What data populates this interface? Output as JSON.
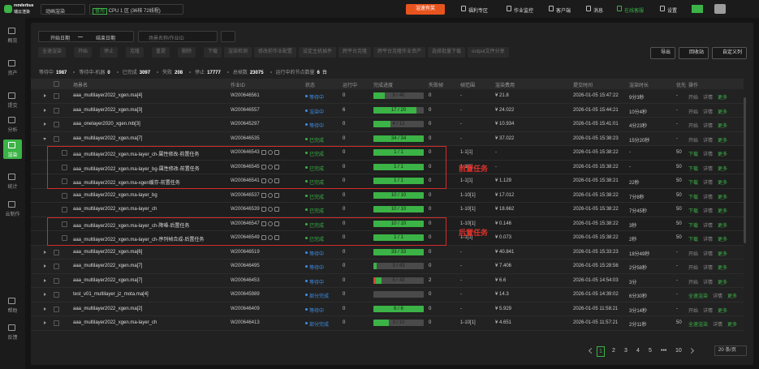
{
  "topbar": {
    "logo": "renderbus",
    "logo_sub": "瑞云渲染",
    "product": "动画渲染",
    "zone_tag": "暂用",
    "zone": "CPU 1 区 (36核 72线程)",
    "promo": "渲速有奖",
    "links": [
      "福利专区",
      "作业监控",
      "客户端",
      "消息",
      "在线客服",
      "设置"
    ]
  },
  "sidebar": {
    "items": [
      "概览",
      "资产",
      "提交",
      "分析",
      "渲染",
      "统计",
      "云制作"
    ],
    "active": 4,
    "bottom": [
      "帮助",
      "反馈"
    ]
  },
  "filters": {
    "start_date": "开始日期",
    "end_date": "结束日期",
    "search": "场景名称/作业ID"
  },
  "toolbar": {
    "buttons": [
      "全速渲染",
      "开始",
      "停止",
      "克隆",
      "重提",
      "删除",
      "下载",
      "渲染检测",
      "修改前作业配置",
      "设定主机插件",
      "跨平台克隆",
      "跨平台克隆作业资产",
      "选择批量下载",
      "output文件分享"
    ],
    "right": [
      "导出",
      "回收站",
      "自定义列"
    ]
  },
  "stats": [
    {
      "label": "等待中",
      "value": "1987"
    },
    {
      "label": "等待中-机器",
      "value": "0"
    },
    {
      "label": "已完成",
      "value": "3097"
    },
    {
      "label": "失败",
      "value": "208"
    },
    {
      "label": "停止",
      "value": "17777"
    },
    {
      "label": "总帧数",
      "value": "23075"
    },
    {
      "label": "运行中的节点数量",
      "value": "6",
      "unit": "台"
    }
  ],
  "table": {
    "columns": [
      "场景名",
      "作业ID",
      "状态",
      "运行中",
      "完成进度",
      "失败帧",
      "帧范围",
      "渲染费用",
      "提交时间",
      "渲染时长",
      "优先",
      "操作"
    ],
    "rows": [
      {
        "name": "aaa_multilayer2022_xgen.ma[4]",
        "id": "W200646561",
        "status": {
          "text": "等待中",
          "color": "#3d8fe8"
        },
        "running": 0,
        "progress": {
          "done": 9,
          "total": 40,
          "label": "9 / 40"
        },
        "failed": 0,
        "frames": "-",
        "cost": "¥ 21.8",
        "submitted": "2026-01-05 15:47:22",
        "duration": "9分3秒",
        "priority": "-",
        "actions": [
          {
            "text": "开始",
            "color": "#8a8a8a"
          },
          {
            "text": "详情",
            "color": "#8a8a8a"
          },
          {
            "text": "更多",
            "color": "#3bb346"
          }
        ]
      },
      {
        "name": "aaa_multilayer2022_xgen.ma[3]",
        "id": "W200646557",
        "status": {
          "text": "渲染中",
          "color": "#3d8fe8"
        },
        "running": 6,
        "progress": {
          "done": 17,
          "total": 20,
          "label": "17 / 20"
        },
        "failed": 0,
        "frames": "-",
        "cost": "¥ 24.022",
        "submitted": "2026-01-05 15:44:21",
        "duration": "10分4秒",
        "priority": "-",
        "actions": [
          {
            "text": "开始",
            "color": "#8a8a8a"
          },
          {
            "text": "详情",
            "color": "#8a8a8a"
          },
          {
            "text": "更多",
            "color": "#3bb346"
          }
        ]
      },
      {
        "name": "aaa_onelayer2020_xgen.mb[3]",
        "id": "W200645297",
        "status": {
          "text": "等待中",
          "color": "#3d8fe8"
        },
        "running": 0,
        "progress": {
          "done": 4,
          "total": 12,
          "label": "4 / 12"
        },
        "failed": 0,
        "frames": "-",
        "cost": "¥ 10.934",
        "submitted": "2026-01-05 15:41:01",
        "duration": "4分23秒",
        "priority": "-",
        "actions": [
          {
            "text": "开始",
            "color": "#8a8a8a"
          },
          {
            "text": "详情",
            "color": "#8a8a8a"
          },
          {
            "text": "更多",
            "color": "#3bb346"
          }
        ]
      },
      {
        "name": "aaa_multilayer2022_xgen.ma[7]",
        "id": "W200646535",
        "status": {
          "text": "已完成",
          "color": "#3bb346"
        },
        "running": 0,
        "progress": {
          "done": 34,
          "total": 34,
          "label": "34 / 34"
        },
        "failed": 0,
        "frames": "-",
        "cost": "¥ 37.022",
        "submitted": "2026-01-05 15:38:23",
        "duration": "15分20秒",
        "priority": "-",
        "actions": [
          {
            "text": "开始",
            "color": "#8a8a8a"
          },
          {
            "text": "详情",
            "color": "#8a8a8a"
          },
          {
            "text": "更多",
            "color": "#3bb346"
          }
        ],
        "children": [
          {
            "name": "aaa_multilayer2022_xgen.ma-layer_ch-属性修改-前置任务",
            "id": "W200646543",
            "status": {
              "text": "已完成",
              "color": "#3bb346"
            },
            "running": 0,
            "progress": {
              "done": 1,
              "total": 1,
              "label": "1 / 1"
            },
            "failed": 0,
            "frames": "1-1[1]",
            "cost": "-",
            "submitted": "2026-01-05 15:38:22",
            "duration": "-",
            "priority": "50",
            "actions": [
              {
                "text": "下载",
                "color": "#3bb346"
              },
              {
                "text": "详情",
                "color": "#8a8a8a"
              },
              {
                "text": "更多",
                "color": "#3bb346"
              }
            ]
          },
          {
            "name": "aaa_multilayer2022_xgen.ma-layer_bg-属性修改-前置任务",
            "id": "W200646545",
            "status": {
              "text": "已完成",
              "color": "#3bb346"
            },
            "running": 0,
            "progress": {
              "done": 1,
              "total": 1,
              "label": "1 / 1"
            },
            "failed": 0,
            "frames": "1-1[1]",
            "cost": "-",
            "submitted": "2026-01-05 15:38:22",
            "duration": "-",
            "priority": "50",
            "actions": [
              {
                "text": "下载",
                "color": "#3bb346"
              },
              {
                "text": "详情",
                "color": "#8a8a8a"
              },
              {
                "text": "更多",
                "color": "#3bb346"
              }
            ]
          },
          {
            "name": "aaa_multilayer2022_xgen.ma-xgen缓存-前置任务",
            "id": "W200646541",
            "status": {
              "text": "已完成",
              "color": "#3bb346"
            },
            "running": 0,
            "progress": {
              "done": 1,
              "total": 1,
              "label": "1 / 1"
            },
            "failed": 0,
            "frames": "1-1[1]",
            "cost": "¥ 1.129",
            "submitted": "2026-01-05 15:38:21",
            "duration": "22秒",
            "priority": "50",
            "actions": [
              {
                "text": "下载",
                "color": "#3bb346"
              },
              {
                "text": "详情",
                "color": "#8a8a8a"
              },
              {
                "text": "更多",
                "color": "#3bb346"
              }
            ]
          },
          {
            "name": "aaa_multilayer2022_xgen.ma-layer_bg",
            "id": "W200646537",
            "status": {
              "text": "已完成",
              "color": "#3bb346"
            },
            "running": 0,
            "progress": {
              "done": 10,
              "total": 10,
              "label": "10 / 10"
            },
            "failed": 0,
            "frames": "1-10[1]",
            "cost": "¥ 17.012",
            "submitted": "2026-01-05 15:38:22",
            "duration": "7分8秒",
            "priority": "50",
            "actions": [
              {
                "text": "下载",
                "color": "#3bb346"
              },
              {
                "text": "详情",
                "color": "#8a8a8a"
              },
              {
                "text": "更多",
                "color": "#3bb346"
              }
            ]
          },
          {
            "name": "aaa_multilayer2022_xgen.ma-layer_ch",
            "id": "W200646539",
            "status": {
              "text": "已完成",
              "color": "#3bb346"
            },
            "running": 0,
            "progress": {
              "done": 10,
              "total": 10,
              "label": "10 / 10"
            },
            "failed": 0,
            "frames": "1-10[1]",
            "cost": "¥ 18.662",
            "submitted": "2026-01-05 15:38:22",
            "duration": "7分45秒",
            "priority": "50",
            "actions": [
              {
                "text": "下载",
                "color": "#3bb346"
              },
              {
                "text": "详情",
                "color": "#8a8a8a"
              },
              {
                "text": "更多",
                "color": "#3bb346"
              }
            ]
          },
          {
            "name": "aaa_multilayer2022_xgen.ma-layer_ch-降噪-后置任务",
            "id": "W200646547",
            "status": {
              "text": "已完成",
              "color": "#3bb346"
            },
            "running": 0,
            "progress": {
              "done": 10,
              "total": 10,
              "label": "10 / 10"
            },
            "failed": 0,
            "frames": "1-10[1]",
            "cost": "¥ 0.146",
            "submitted": "2026-01-05 15:38:22",
            "duration": "3秒",
            "priority": "50",
            "actions": [
              {
                "text": "下载",
                "color": "#3bb346"
              },
              {
                "text": "详情",
                "color": "#8a8a8a"
              },
              {
                "text": "更多",
                "color": "#3bb346"
              }
            ]
          },
          {
            "name": "aaa_multilayer2022_xgen.ma-layer_ch-序列帧合成-后置任务",
            "id": "W200646549",
            "status": {
              "text": "已完成",
              "color": "#3bb346"
            },
            "running": 0,
            "progress": {
              "done": 1,
              "total": 1,
              "label": "1 / 1"
            },
            "failed": 0,
            "frames": "1-1[1]",
            "cost": "¥ 0.073",
            "submitted": "2026-01-05 15:38:22",
            "duration": "2秒",
            "priority": "50",
            "actions": [
              {
                "text": "下载",
                "color": "#3bb346"
              },
              {
                "text": "详情",
                "color": "#8a8a8a"
              },
              {
                "text": "更多",
                "color": "#3bb346"
              }
            ]
          }
        ]
      },
      {
        "name": "aaa_multilayer2022_xgen.ma[6]",
        "id": "W200646519",
        "status": {
          "text": "等待中",
          "color": "#3d8fe8"
        },
        "running": 0,
        "progress": {
          "done": 33,
          "total": 33,
          "label": "33 / 33"
        },
        "failed": 0,
        "frames": "-",
        "cost": "¥ 40.841",
        "submitted": "2026-01-05 15:33:23",
        "duration": "18分49秒",
        "priority": "-",
        "actions": [
          {
            "text": "开始",
            "color": "#8a8a8a"
          },
          {
            "text": "详情",
            "color": "#8a8a8a"
          },
          {
            "text": "更多",
            "color": "#3bb346"
          }
        ]
      },
      {
        "name": "aaa_multilayer2022_xgen.ma[7]",
        "id": "W200646495",
        "status": {
          "text": "等待中",
          "color": "#3d8fe8"
        },
        "running": 0,
        "progress": {
          "done": 3,
          "total": 43,
          "label": "3 / 43"
        },
        "failed": 0,
        "frames": "-",
        "cost": "¥ 7.406",
        "submitted": "2026-01-05 15:28:56",
        "duration": "2分58秒",
        "priority": "-",
        "actions": [
          {
            "text": "开始",
            "color": "#8a8a8a"
          },
          {
            "text": "详情",
            "color": "#8a8a8a"
          },
          {
            "text": "更多",
            "color": "#3bb346"
          }
        ]
      },
      {
        "name": "aaa_multilayer2022_xgen.ma[7]",
        "id": "W200646453",
        "status": {
          "text": "等待中",
          "color": "#3d8fe8"
        },
        "running": 0,
        "progress": {
          "done": 5,
          "total": 43,
          "label": "5 / 43"
        },
        "failed": 2,
        "frames": "-",
        "cost": "¥ 6.6",
        "submitted": "2026-01-05 14:54:03",
        "duration": "3分",
        "priority": "-",
        "actions": [
          {
            "text": "开始",
            "color": "#8a8a8a"
          },
          {
            "text": "详情",
            "color": "#8a8a8a"
          },
          {
            "text": "更多",
            "color": "#3bb346"
          }
        ]
      },
      {
        "name": "test_v01_multilayer_jz_mota.ma[4]",
        "id": "W200645989",
        "status": {
          "text": "部分完成",
          "color": "#3d8fe8"
        },
        "running": 0,
        "failed": 0,
        "frames": "-",
        "cost": "¥ 14.3",
        "submitted": "2026-01-05 14:39:02",
        "duration": "6分30秒",
        "priority": "-",
        "actions": [
          {
            "text": "全速渲染",
            "color": "#3bb346"
          },
          {
            "text": "详情",
            "color": "#8a8a8a"
          },
          {
            "text": "更多",
            "color": "#3bb346"
          }
        ]
      },
      {
        "name": "aaa_multilayer2022_xgen.ma[2]",
        "id": "W200646409",
        "status": {
          "text": "等待中",
          "color": "#3d8fe8"
        },
        "running": 0,
        "progress": {
          "done": 6,
          "total": 6,
          "label": "6 / 6"
        },
        "failed": 0,
        "frames": "-",
        "cost": "¥ 5.929",
        "submitted": "2026-01-05 11:58:21",
        "duration": "3分14秒",
        "priority": "-",
        "actions": [
          {
            "text": "开始",
            "color": "#8a8a8a"
          },
          {
            "text": "详情",
            "color": "#8a8a8a"
          },
          {
            "text": "更多",
            "color": "#3bb346"
          }
        ]
      },
      {
        "name": "aaa_multilayer2022_xgen.ma-layer_ch",
        "id": "W200646413",
        "status": {
          "text": "部分完成",
          "color": "#3d8fe8"
        },
        "running": 0,
        "progress": {
          "done": 3,
          "total": 10,
          "label": "3 / 10"
        },
        "failed": 0,
        "frames": "1-10[1]",
        "cost": "¥ 4.651",
        "submitted": "2026-01-05 11:57:21",
        "duration": "2分11秒",
        "priority": "50",
        "actions": [
          {
            "text": "全速渲染",
            "color": "#3bb346"
          },
          {
            "text": "详情",
            "color": "#8a8a8a"
          },
          {
            "text": "更多",
            "color": "#3bb346"
          }
        ]
      }
    ]
  },
  "annotations": [
    "前置任务",
    "后置任务"
  ],
  "pagination": {
    "pages": [
      "1",
      "2",
      "3",
      "4",
      "5",
      "•••",
      "10"
    ],
    "current": 0,
    "page_size": "20 条/页"
  }
}
